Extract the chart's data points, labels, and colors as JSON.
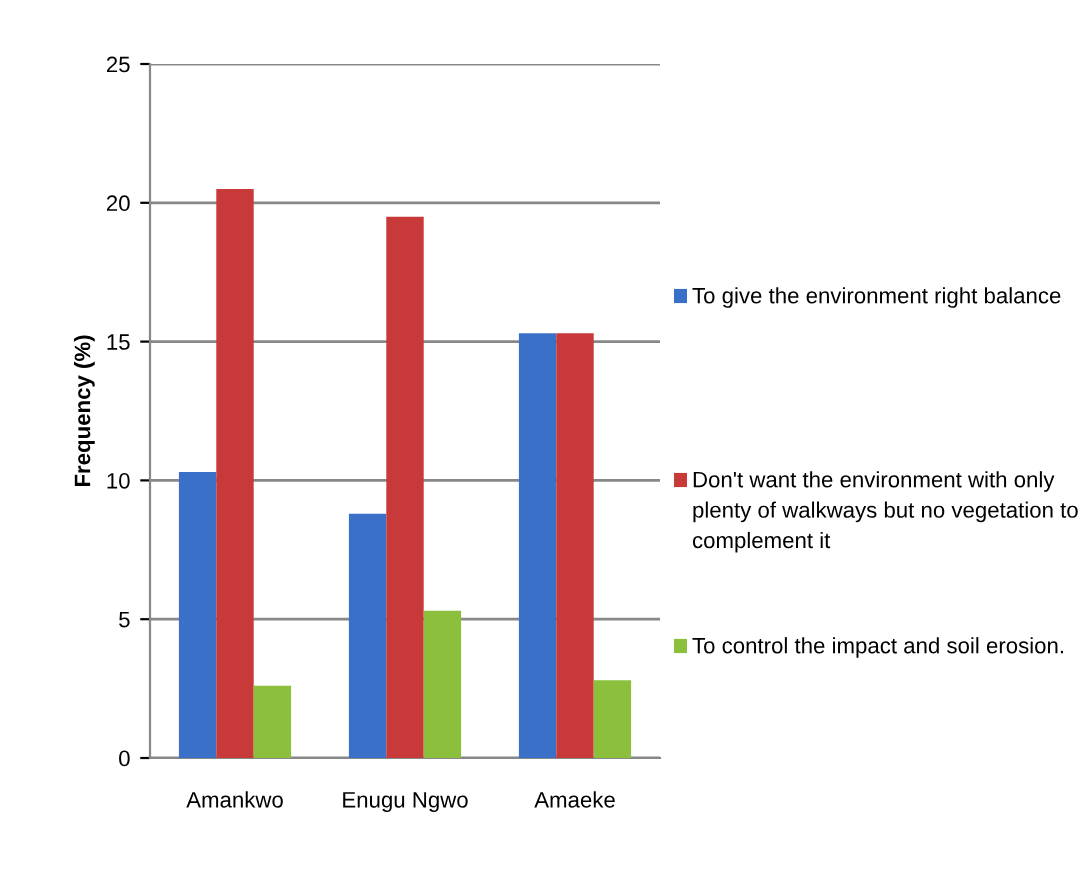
{
  "chart_data": {
    "type": "bar",
    "ylabel": "Frequency (%)",
    "categories": [
      "Amankwo",
      "Enugu Ngwo",
      "Amaeke"
    ],
    "series": [
      {
        "name": "To give the environment right balance",
        "color": "#3a70c8",
        "values": [
          10.3,
          8.8,
          15.3
        ]
      },
      {
        "name": "Don't want the environment with only plenty of walkways but no vegetation to complement it",
        "color": "#c8393a",
        "values": [
          20.5,
          19.5,
          15.3
        ]
      },
      {
        "name": "To control the impact and soil erosion.",
        "color": "#8cbf3c",
        "values": [
          2.6,
          5.3,
          2.8
        ]
      }
    ],
    "ylim": [
      0,
      25
    ],
    "yticks": [
      0,
      5,
      10,
      15,
      20,
      25
    ],
    "grid": "y",
    "legend": "right"
  }
}
